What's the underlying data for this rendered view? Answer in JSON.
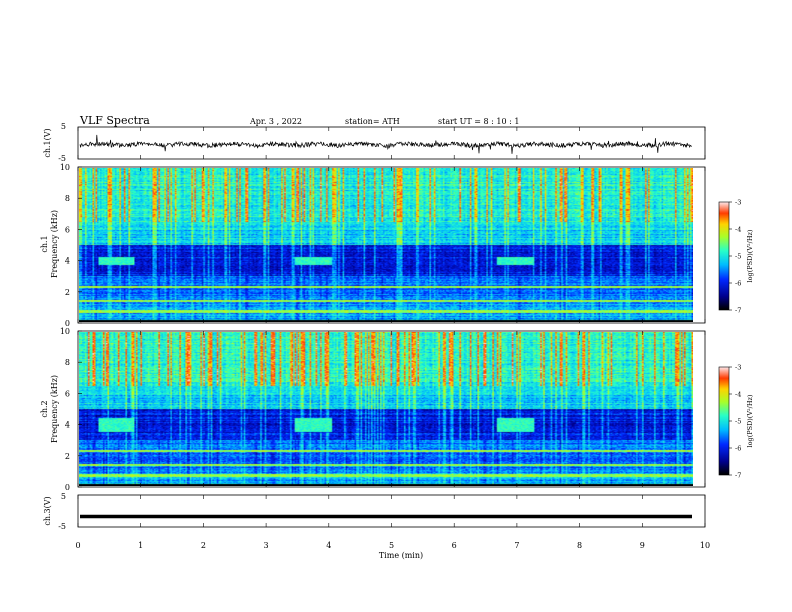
{
  "header": {
    "title": "VLF  Spectra",
    "date": "Apr. 3  , 2022",
    "station": "station= ATH",
    "start": "start  UT  =   8  : 10 : 1"
  },
  "chart_data": [
    {
      "type": "line",
      "panel": "ch1-waveform",
      "ylabel": "ch.1(V)",
      "ylim": [
        -5,
        5
      ],
      "yticks": [
        "5",
        "-5"
      ],
      "xlim": [
        0,
        10
      ],
      "series": [
        {
          "values_summary": "noisy waveform near -0.5 V with spikes"
        }
      ]
    },
    {
      "type": "heatmap",
      "panel": "ch1-spectrogram",
      "ylabel_1": "ch.1",
      "ylabel_2": "Frequency  (kHz)",
      "ylim": [
        0,
        10
      ],
      "yticks": [
        "0",
        "2",
        "4",
        "6",
        "8",
        "10"
      ],
      "xlim": [
        0,
        10
      ],
      "colorbar": {
        "label": "log(PSD)(V²/Hz)",
        "ticks": [
          "-3",
          "-4",
          "-5",
          "-6",
          "-7"
        ],
        "range": [
          -7,
          -3
        ]
      }
    },
    {
      "type": "heatmap",
      "panel": "ch2-spectrogram",
      "ylabel_1": "ch.2",
      "ylabel_2": "Frequency  (kHz)",
      "ylim": [
        0,
        10
      ],
      "yticks": [
        "0",
        "2",
        "4",
        "6",
        "8",
        "10"
      ],
      "xlim": [
        0,
        10
      ],
      "colorbar": {
        "label": "log(PSD)(V²/Hz)",
        "ticks": [
          "-3",
          "-4",
          "-5",
          "-6",
          "-7"
        ],
        "range": [
          -7,
          -3
        ]
      }
    },
    {
      "type": "line",
      "panel": "ch3-waveform",
      "ylabel": "ch.3(V)",
      "ylim": [
        -5,
        5
      ],
      "yticks": [
        "5",
        "-5"
      ],
      "xlabel": "Time  (min)",
      "xlim": [
        0,
        10
      ],
      "xticks": [
        "0",
        "1",
        "2",
        "3",
        "4",
        "5",
        "6",
        "7",
        "8",
        "9",
        "10"
      ],
      "series": [
        {
          "values_summary": "flat at about -1.7 V"
        }
      ]
    }
  ]
}
